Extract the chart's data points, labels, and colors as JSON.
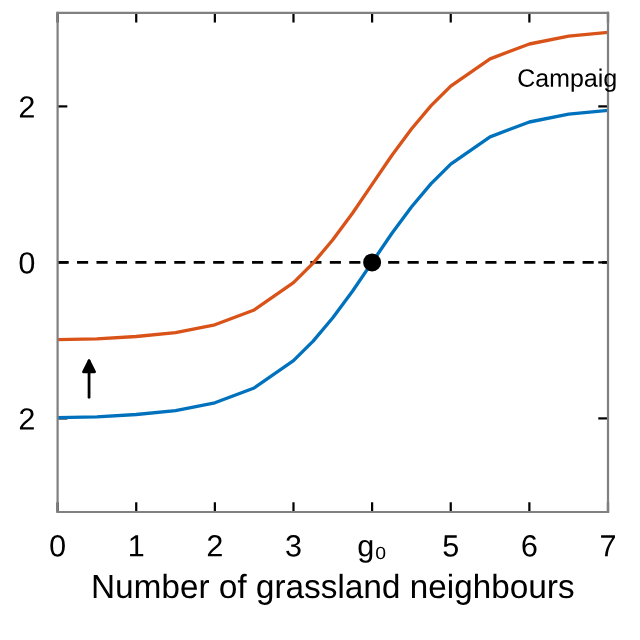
{
  "chart_data": {
    "type": "line",
    "x": [
      0,
      0.5,
      1,
      1.5,
      2,
      2.5,
      3,
      3.25,
      3.5,
      3.75,
      4,
      4.25,
      4.5,
      4.75,
      5,
      5.5,
      6,
      6.5,
      7
    ],
    "series": [
      {
        "color": "#d95319",
        "values": [
          -0.99,
          -0.98,
          -0.95,
          -0.9,
          -0.8,
          -0.61,
          -0.26,
          -0.01,
          0.29,
          0.63,
          1,
          1.37,
          1.71,
          2.01,
          2.26,
          2.61,
          2.8,
          2.9,
          2.95
        ]
      },
      {
        "color": "#0072bd",
        "values": [
          -1.99,
          -1.98,
          -1.95,
          -1.9,
          -1.8,
          -1.61,
          -1.26,
          -1.01,
          -0.71,
          -0.37,
          0,
          0.37,
          0.71,
          1.01,
          1.26,
          1.61,
          1.8,
          1.9,
          1.95
        ]
      },
      {
        "type": "scatter",
        "color": "#000000",
        "x": [
          4
        ],
        "values": [
          0
        ],
        "marker": "circle"
      }
    ],
    "xlabel": "Number of grassland neighbours",
    "xlim": [
      0,
      7
    ],
    "xticks": [
      0,
      1,
      2,
      3,
      {
        "value": 4,
        "label": "g₀"
      },
      5,
      6,
      7
    ],
    "ylim": [
      -3.2,
      3.2
    ],
    "yticks": [
      {
        "value": -2,
        "label": "2"
      },
      0,
      2
    ],
    "ref_lines": [
      {
        "axis": "y",
        "value": 0,
        "color": "#000000",
        "line_style": "dashed"
      }
    ],
    "annotations": [
      "Campaig"
    ],
    "grid": false
  }
}
